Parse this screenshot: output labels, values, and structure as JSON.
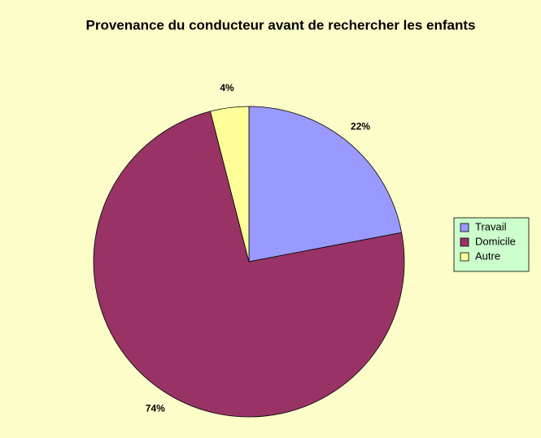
{
  "chart_data": {
    "type": "pie",
    "title": "Provenance du conducteur avant de rechercher les enfants",
    "categories": [
      "Travail",
      "Domicile",
      "Autre"
    ],
    "values": [
      22,
      74,
      4
    ],
    "value_labels": [
      "22%",
      "74%",
      "4%"
    ],
    "colors": [
      "#9999ff",
      "#993366",
      "#ffff99"
    ],
    "legend": "right"
  }
}
